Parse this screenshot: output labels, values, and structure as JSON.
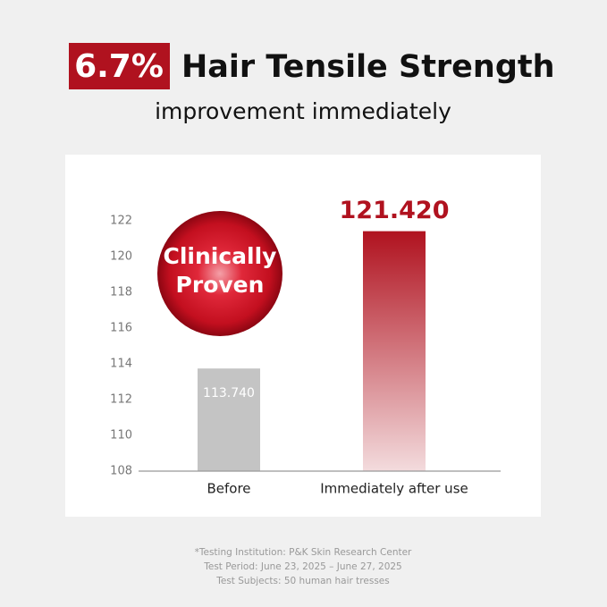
{
  "chart_data": {
    "type": "bar",
    "highlight": "6.7%",
    "title": "Hair Tensile Strength",
    "subtitle": "improvement immediately",
    "categories": [
      "Before",
      "Immediately after use"
    ],
    "values": [
      113.74,
      121.42
    ],
    "value_labels": [
      "113.740",
      "121.420"
    ],
    "colors": [
      "#c4c4c4",
      "#b0121f"
    ],
    "ylim": [
      108,
      122
    ],
    "yticks": [
      108,
      110,
      112,
      114,
      116,
      118,
      120,
      122
    ],
    "badge": [
      "Clinically",
      "Proven"
    ],
    "footnotes": [
      "*Testing Institution: P&K Skin Research Center",
      "Test Period: June 23, 2025 – June 27, 2025",
      "Test Subjects: 50 human hair tresses"
    ]
  }
}
